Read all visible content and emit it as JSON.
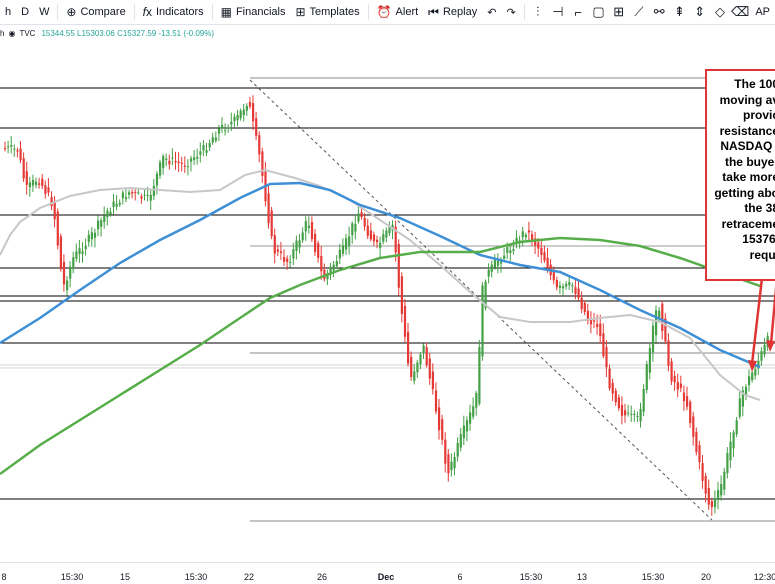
{
  "toolbar": {
    "interval_short": "h",
    "intervals": [
      "D",
      "W"
    ],
    "compare_label": "Compare",
    "indicators_label": "Indicators",
    "financials_label": "Financials",
    "templates_label": "Templates",
    "alert_label": "Alert",
    "replay_label": "Replay",
    "trailing_label": "AP"
  },
  "legend": {
    "prefix": "h",
    "source": "TVC",
    "ohlc": "15344.55  L15303.06  C15327.59  -13.51 (-0.09%)"
  },
  "annotation": {
    "lines": [
      "The 100",
      "moving av",
      "provic",
      "resistance",
      "NASDAQ i",
      "the buyer",
      "take more",
      "getting abo",
      "the 38",
      "retraceme",
      "15376.",
      "requi"
    ]
  },
  "x_axis": {
    "labels": [
      "8",
      "15:30",
      "15",
      "15:30",
      "22",
      "26",
      "Dec",
      "6",
      "15:30",
      "13",
      "15:30",
      "20",
      "12:30"
    ],
    "bold": [
      "Dec"
    ]
  },
  "colors": {
    "up": "#43a047",
    "down": "#e53935",
    "ma100": "#3d8fd6",
    "ma200": "#57ad4a",
    "ma50": "#c7c7c7",
    "annotation_border": "#e03535"
  }
}
